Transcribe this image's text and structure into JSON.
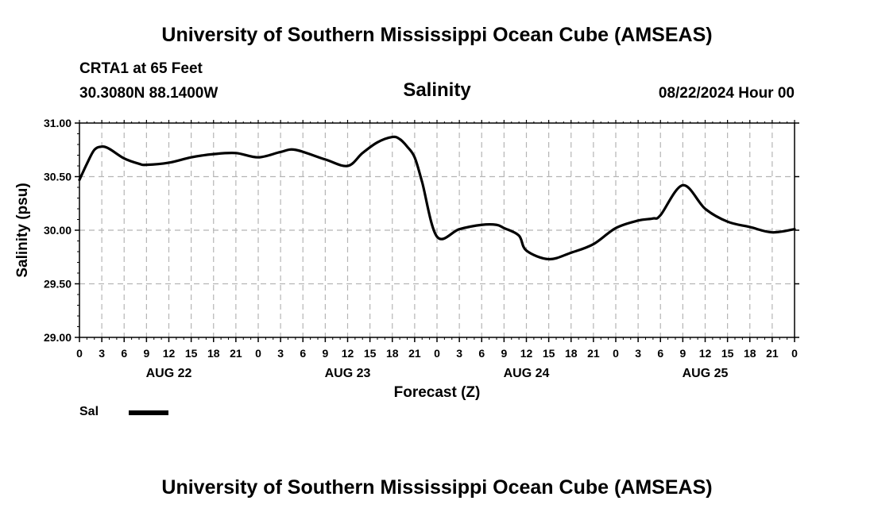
{
  "header": {
    "title": "University of Southern Mississippi Ocean Cube (AMSEAS)",
    "station": "CRTA1 at 65 Feet",
    "coords": "30.3080N  88.1400W",
    "date": "08/22/2024 Hour 00"
  },
  "footer": {
    "title": "University of Southern Mississippi Ocean Cube (AMSEAS)"
  },
  "legend": {
    "label": "Sal"
  },
  "chart_data": {
    "type": "line",
    "title": "Salinity",
    "xlabel": "Forecast (Z)",
    "ylabel": "Salinity (psu)",
    "xlim": [
      0,
      96
    ],
    "ylim": [
      29.0,
      31.0
    ],
    "grid": true,
    "legend_position": "bottom-left",
    "yticks": [
      "29.00",
      "29.50",
      "30.00",
      "30.50",
      "31.00"
    ],
    "xtick_labels": [
      "0",
      "3",
      "6",
      "9",
      "12",
      "15",
      "18",
      "21",
      "0",
      "3",
      "6",
      "9",
      "12",
      "15",
      "18",
      "21",
      "0",
      "3",
      "6",
      "9",
      "12",
      "15",
      "18",
      "21",
      "0",
      "3",
      "6",
      "9",
      "12",
      "15",
      "18",
      "21",
      "0"
    ],
    "day_labels": [
      {
        "label": "AUG 22",
        "hour": 12
      },
      {
        "label": "AUG 23",
        "hour": 36
      },
      {
        "label": "AUG 24",
        "hour": 60
      },
      {
        "label": "AUG 25",
        "hour": 84
      }
    ],
    "series": [
      {
        "name": "Sal",
        "x": [
          0,
          1,
          2,
          3,
          4,
          6,
          8,
          9,
          12,
          15,
          18,
          21,
          24,
          27,
          29,
          33,
          36,
          38,
          40,
          42,
          43,
          44,
          45,
          46,
          48,
          51,
          54,
          56,
          57,
          59,
          60,
          63,
          66,
          69,
          72,
          75,
          77,
          78,
          81,
          84,
          87,
          90,
          93,
          96
        ],
        "y": [
          30.47,
          30.62,
          30.75,
          30.78,
          30.76,
          30.67,
          30.62,
          30.61,
          30.63,
          30.68,
          30.71,
          30.72,
          30.68,
          30.73,
          30.75,
          30.66,
          30.6,
          30.72,
          30.82,
          30.87,
          30.85,
          30.78,
          30.68,
          30.45,
          29.94,
          30.01,
          30.05,
          30.05,
          30.02,
          29.95,
          29.81,
          29.73,
          29.79,
          29.87,
          30.02,
          30.09,
          30.11,
          30.14,
          30.42,
          30.2,
          30.08,
          30.03,
          29.98,
          30.01
        ]
      }
    ]
  }
}
